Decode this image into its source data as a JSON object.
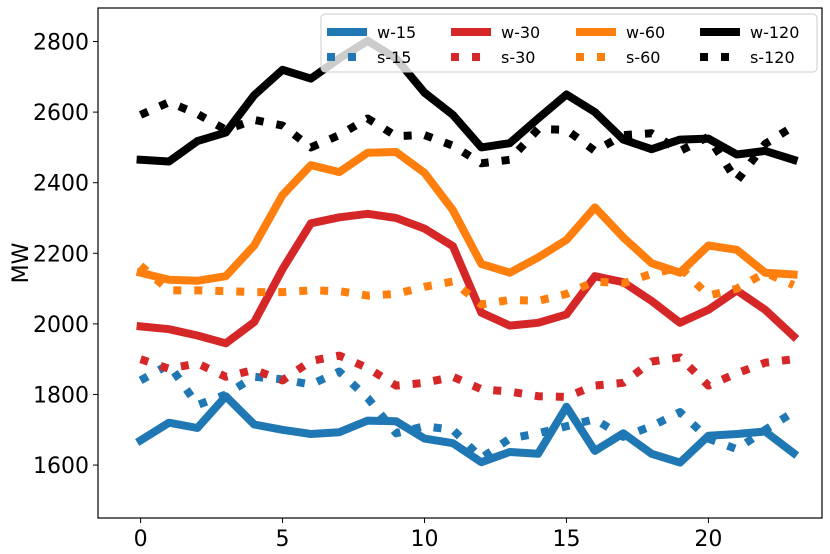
{
  "chart_data": {
    "type": "line",
    "title": "",
    "xlabel": "",
    "ylabel": "MW",
    "xlim": [
      -1.5,
      24
    ],
    "ylim": [
      1450,
      2895
    ],
    "grid": false,
    "legend_position": "top-right",
    "x_ticks": [
      0,
      5,
      10,
      15,
      20
    ],
    "y_ticks": [
      1600,
      1800,
      2000,
      2200,
      2400,
      2600,
      2800
    ],
    "x": [
      0,
      1,
      2,
      3,
      4,
      5,
      6,
      7,
      8,
      9,
      10,
      11,
      12,
      13,
      14,
      15,
      16,
      17,
      18,
      19,
      20,
      21,
      22,
      23
    ],
    "series": [
      {
        "name": "w-15",
        "color": "#1f77b4",
        "style": "solid",
        "values": [
          1670,
          1720,
          1705,
          1795,
          1715,
          1700,
          1688,
          1693,
          1726,
          1724,
          1675,
          1662,
          1608,
          1637,
          1632,
          1765,
          1640,
          1690,
          1632,
          1607,
          1683,
          1688,
          1695,
          1634
        ]
      },
      {
        "name": "s-15",
        "color": "#1f77b4",
        "style": "dotted",
        "values": [
          1840,
          1885,
          1770,
          1800,
          1850,
          1843,
          1828,
          1865,
          1790,
          1690,
          1710,
          1700,
          1620,
          1675,
          1690,
          1710,
          1730,
          1680,
          1710,
          1750,
          1675,
          1645,
          1700,
          1750
        ]
      },
      {
        "name": "w-30",
        "color": "#d62728",
        "style": "solid",
        "values": [
          1993,
          1985,
          1967,
          1945,
          2005,
          2155,
          2285,
          2302,
          2312,
          2300,
          2270,
          2220,
          2032,
          1995,
          2003,
          2027,
          2135,
          2118,
          2065,
          2003,
          2040,
          2095,
          2040,
          1965
        ]
      },
      {
        "name": "s-30",
        "color": "#d62728",
        "style": "dotted",
        "values": [
          1900,
          1873,
          1888,
          1850,
          1870,
          1840,
          1895,
          1910,
          1875,
          1825,
          1833,
          1850,
          1815,
          1808,
          1795,
          1793,
          1825,
          1833,
          1893,
          1905,
          1825,
          1860,
          1890,
          1900
        ]
      },
      {
        "name": "w-60",
        "color": "#ff7f0e",
        "style": "solid",
        "values": [
          2145,
          2125,
          2122,
          2135,
          2222,
          2365,
          2450,
          2430,
          2485,
          2487,
          2428,
          2322,
          2170,
          2145,
          2188,
          2238,
          2330,
          2245,
          2172,
          2145,
          2222,
          2210,
          2145,
          2140
        ]
      },
      {
        "name": "s-60",
        "color": "#ff7f0e",
        "style": "dotted",
        "values": [
          2165,
          2095,
          2095,
          2093,
          2090,
          2090,
          2095,
          2093,
          2080,
          2085,
          2105,
          2120,
          2055,
          2068,
          2065,
          2085,
          2120,
          2115,
          2142,
          2160,
          2080,
          2100,
          2145,
          2110
        ]
      },
      {
        "name": "w-120",
        "color": "#000000",
        "style": "solid",
        "values": [
          2465,
          2460,
          2518,
          2542,
          2648,
          2720,
          2695,
          2752,
          2802,
          2752,
          2655,
          2592,
          2500,
          2512,
          2582,
          2650,
          2600,
          2522,
          2495,
          2522,
          2525,
          2480,
          2490,
          2465
        ]
      },
      {
        "name": "s-120",
        "color": "#000000",
        "style": "dotted",
        "values": [
          2592,
          2628,
          2595,
          2550,
          2578,
          2562,
          2500,
          2535,
          2582,
          2532,
          2535,
          2505,
          2455,
          2465,
          2552,
          2550,
          2490,
          2535,
          2540,
          2490,
          2530,
          2405,
          2510,
          2560
        ]
      }
    ]
  }
}
